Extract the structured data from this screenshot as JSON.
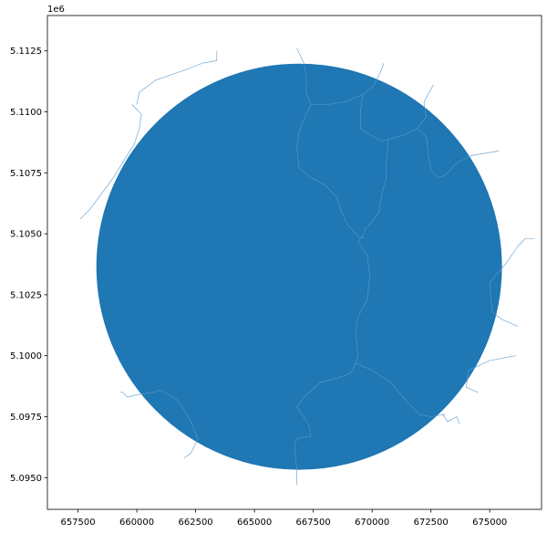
{
  "chart_data": {
    "type": "map",
    "title": "",
    "xlabel": "",
    "ylabel": "",
    "y_offset_label": "1e6",
    "xlim": [
      656200,
      677200
    ],
    "ylim": [
      5093700,
      5113950
    ],
    "xticks": [
      657500,
      660000,
      662500,
      665000,
      667500,
      670000,
      672500,
      675000
    ],
    "xtick_labels": [
      "657500",
      "660000",
      "662500",
      "665000",
      "667500",
      "670000",
      "672500",
      "675000"
    ],
    "yticks": [
      5095000,
      5097500,
      5100000,
      5102500,
      5105000,
      5107500,
      5110000,
      5112500
    ],
    "ytick_labels": [
      "5.0950",
      "5.0975",
      "5.1000",
      "5.1025",
      "5.1050",
      "5.1075",
      "5.1100",
      "5.1125"
    ],
    "fill_color": "#1f77b4",
    "edge_color": "#5a9bd0",
    "grid": false,
    "region": {
      "shape": "circle",
      "center": [
        666900,
        5103650
      ],
      "radius": 8600
    },
    "boundaries": [
      [
        [
          657600,
          5105600
        ],
        [
          658000,
          5106000
        ],
        [
          659000,
          5107300
        ],
        [
          659900,
          5108700
        ],
        [
          660100,
          5109300
        ],
        [
          660200,
          5109900
        ],
        [
          659800,
          5110300
        ]
      ],
      [
        [
          660000,
          5110300
        ],
        [
          660100,
          5110800
        ],
        [
          660800,
          5111300
        ],
        [
          662000,
          5111700
        ],
        [
          662800,
          5112000
        ],
        [
          663400,
          5112100
        ],
        [
          663400,
          5112500
        ]
      ],
      [
        [
          666800,
          5112600
        ],
        [
          667100,
          5112000
        ],
        [
          667200,
          5111500
        ],
        [
          667200,
          5110800
        ],
        [
          667400,
          5110300
        ],
        [
          667200,
          5109900
        ],
        [
          666900,
          5109200
        ],
        [
          666800,
          5108500
        ],
        [
          666900,
          5107700
        ],
        [
          667400,
          5107300
        ],
        [
          668000,
          5107000
        ],
        [
          668500,
          5106500
        ],
        [
          668700,
          5105900
        ],
        [
          669000,
          5105300
        ],
        [
          669400,
          5104900
        ],
        [
          669700,
          5104800
        ]
      ],
      [
        [
          667400,
          5110300
        ],
        [
          668100,
          5110300
        ],
        [
          668800,
          5110400
        ],
        [
          669600,
          5110700
        ]
      ],
      [
        [
          669600,
          5110700
        ],
        [
          670000,
          5111000
        ],
        [
          670300,
          5111500
        ],
        [
          670500,
          5112000
        ]
      ],
      [
        [
          669600,
          5110700
        ],
        [
          669500,
          5110000
        ],
        [
          669500,
          5109300
        ],
        [
          670400,
          5108800
        ],
        [
          671200,
          5109000
        ],
        [
          671900,
          5109300
        ]
      ],
      [
        [
          671900,
          5109300
        ],
        [
          672300,
          5109800
        ],
        [
          672200,
          5110400
        ],
        [
          672600,
          5111100
        ]
      ],
      [
        [
          671900,
          5109300
        ],
        [
          672300,
          5109000
        ],
        [
          672400,
          5108200
        ],
        [
          672500,
          5107600
        ],
        [
          672800,
          5107300
        ],
        [
          673100,
          5107400
        ],
        [
          673600,
          5107900
        ],
        [
          674200,
          5108200
        ],
        [
          675400,
          5108400
        ]
      ],
      [
        [
          670700,
          5108900
        ],
        [
          670600,
          5108000
        ],
        [
          670600,
          5107300
        ],
        [
          670400,
          5106600
        ],
        [
          670300,
          5105900
        ],
        [
          670000,
          5105500
        ],
        [
          669700,
          5105200
        ],
        [
          669600,
          5104900
        ],
        [
          669400,
          5104700
        ]
      ],
      [
        [
          669400,
          5104700
        ],
        [
          669800,
          5104100
        ],
        [
          669900,
          5103300
        ],
        [
          669800,
          5102300
        ],
        [
          669400,
          5101600
        ],
        [
          669300,
          5101000
        ],
        [
          669400,
          5100000
        ],
        [
          669300,
          5099700
        ]
      ],
      [
        [
          669300,
          5099700
        ],
        [
          669100,
          5099300
        ],
        [
          668600,
          5099100
        ],
        [
          667800,
          5098900
        ],
        [
          667100,
          5098300
        ],
        [
          666800,
          5097900
        ],
        [
          667300,
          5097200
        ],
        [
          667400,
          5096700
        ],
        [
          666800,
          5096600
        ],
        [
          666700,
          5096300
        ],
        [
          666800,
          5095300
        ],
        [
          666800,
          5094700
        ]
      ],
      [
        [
          669300,
          5099700
        ],
        [
          670000,
          5099400
        ],
        [
          670800,
          5098900
        ],
        [
          671400,
          5098200
        ],
        [
          672000,
          5097600
        ],
        [
          672500,
          5097500
        ],
        [
          673100,
          5097600
        ]
      ],
      [
        [
          673000,
          5097600
        ],
        [
          673200,
          5097300
        ],
        [
          673600,
          5097500
        ],
        [
          673700,
          5097200
        ]
      ],
      [
        [
          675700,
          5103800
        ],
        [
          675000,
          5103000
        ],
        [
          675100,
          5101800
        ],
        [
          675500,
          5101500
        ],
        [
          676200,
          5101200
        ]
      ],
      [
        [
          675700,
          5103800
        ],
        [
          676200,
          5104500
        ],
        [
          676500,
          5104800
        ],
        [
          676900,
          5104800
        ]
      ],
      [
        [
          676100,
          5100000
        ],
        [
          675000,
          5099800
        ],
        [
          674100,
          5099400
        ],
        [
          674000,
          5098700
        ],
        [
          674500,
          5098500
        ]
      ],
      [
        [
          661000,
          5098600
        ],
        [
          661700,
          5098200
        ],
        [
          662000,
          5097800
        ],
        [
          662300,
          5097300
        ],
        [
          662600,
          5096600
        ],
        [
          662300,
          5096000
        ],
        [
          662000,
          5095800
        ]
      ],
      [
        [
          661000,
          5098600
        ],
        [
          660700,
          5098500
        ],
        [
          660000,
          5098400
        ],
        [
          659600,
          5098300
        ],
        [
          659400,
          5098500
        ],
        [
          659300,
          5098500
        ]
      ]
    ]
  }
}
